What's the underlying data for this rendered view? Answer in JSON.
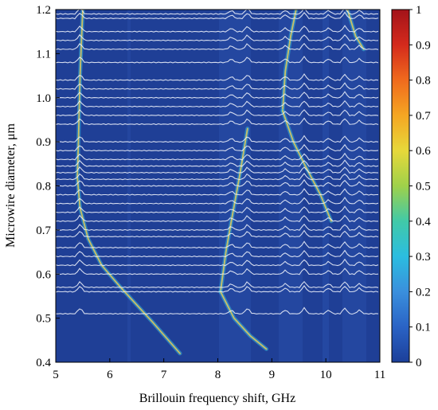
{
  "chart_data": {
    "type": "heatmap",
    "xlabel": "Brillouin frequency shift, GHz",
    "ylabel": "Microwire diameter, μm",
    "xlim": [
      5,
      11
    ],
    "ylim": [
      0.4,
      1.2
    ],
    "x_ticks": [
      "5",
      "6",
      "7",
      "8",
      "9",
      "10",
      "11"
    ],
    "y_ticks": [
      "0.4",
      "0.5",
      "0.6",
      "0.7",
      "0.8",
      "0.9",
      "1.0",
      "1.1",
      "1.2"
    ],
    "colorbar": {
      "range": [
        0,
        1
      ],
      "ticks": [
        "0",
        "0.1",
        "0.2",
        "0.3",
        "0.4",
        "0.5",
        "0.6",
        "0.7",
        "0.8",
        "0.9",
        "1"
      ],
      "colors": [
        "#1c3f9a",
        "#2a63c5",
        "#3a8fdd",
        "#2bbde0",
        "#41c9a8",
        "#9fd14a",
        "#e7d83a",
        "#f5a623",
        "#f06a1d",
        "#d42a1c",
        "#a3131a"
      ]
    },
    "background_color": "#1f3f96",
    "trace_color": "#e8ecf7",
    "spectra_diameters": [
      0.51,
      0.56,
      0.57,
      0.6,
      0.62,
      0.64,
      0.66,
      0.685,
      0.7,
      0.72,
      0.74,
      0.76,
      0.78,
      0.8,
      0.815,
      0.83,
      0.845,
      0.86,
      0.88,
      0.9,
      0.94,
      0.96,
      0.98,
      1.0,
      1.02,
      1.04,
      1.08,
      1.11,
      1.13,
      1.15,
      1.18,
      1.19
    ],
    "resonance_branches": [
      {
        "points": [
          [
            5.5,
            1.2
          ],
          [
            5.45,
            1.05
          ],
          [
            5.42,
            0.9
          ],
          [
            5.4,
            0.82
          ],
          [
            5.45,
            0.75
          ],
          [
            5.6,
            0.68
          ],
          [
            5.85,
            0.62
          ],
          [
            6.2,
            0.57
          ],
          [
            6.8,
            0.49
          ],
          [
            7.3,
            0.42
          ]
        ]
      },
      {
        "points": [
          [
            8.05,
            0.56
          ],
          [
            8.15,
            0.65
          ],
          [
            8.25,
            0.72
          ],
          [
            8.4,
            0.82
          ],
          [
            8.55,
            0.93
          ]
        ]
      },
      {
        "points": [
          [
            8.05,
            0.56
          ],
          [
            8.3,
            0.5
          ],
          [
            8.6,
            0.46
          ],
          [
            8.9,
            0.43
          ]
        ]
      },
      {
        "points": [
          [
            9.2,
            0.97
          ],
          [
            9.25,
            1.06
          ],
          [
            9.35,
            1.14
          ],
          [
            9.45,
            1.2
          ]
        ]
      },
      {
        "points": [
          [
            9.2,
            0.97
          ],
          [
            9.4,
            0.9
          ],
          [
            9.6,
            0.85
          ],
          [
            9.9,
            0.78
          ],
          [
            10.1,
            0.72
          ]
        ]
      },
      {
        "points": [
          [
            10.4,
            1.2
          ],
          [
            10.55,
            1.14
          ],
          [
            10.7,
            1.11
          ]
        ]
      }
    ]
  }
}
